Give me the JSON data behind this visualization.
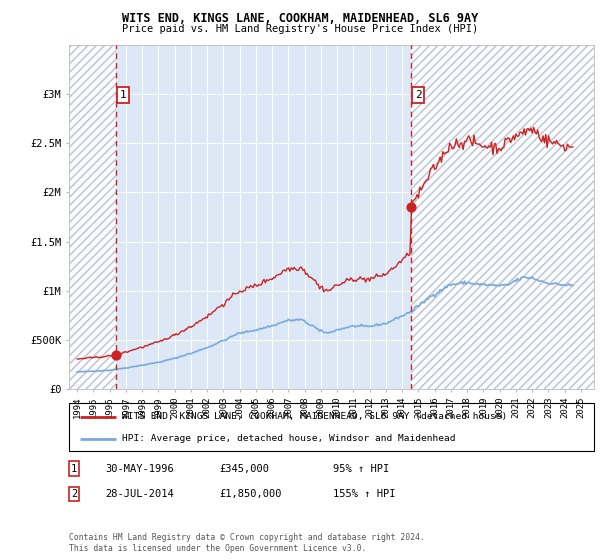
{
  "title": "WITS END, KINGS LANE, COOKHAM, MAIDENHEAD, SL6 9AY",
  "subtitle": "Price paid vs. HM Land Registry's House Price Index (HPI)",
  "ylim": [
    0,
    3500000
  ],
  "yticks": [
    0,
    500000,
    1000000,
    1500000,
    2000000,
    2500000,
    3000000
  ],
  "ytick_labels": [
    "£0",
    "£500K",
    "£1M",
    "£1.5M",
    "£2M",
    "£2.5M",
    "£3M"
  ],
  "sale_color": "#cc2222",
  "hpi_color": "#7aaadd",
  "sale_label": "WITS END, KINGS LANE, COOKHAM, MAIDENHEAD, SL6 9AY (detached house)",
  "hpi_label": "HPI: Average price, detached house, Windsor and Maidenhead",
  "annotation1_date": "30-MAY-1996",
  "annotation1_price": "£345,000",
  "annotation1_hpi": "95% ↑ HPI",
  "annotation2_date": "28-JUL-2014",
  "annotation2_price": "£1,850,000",
  "annotation2_hpi": "155% ↑ HPI",
  "copyright": "Contains HM Land Registry data © Crown copyright and database right 2024.\nThis data is licensed under the Open Government Licence v3.0.",
  "sale1_date": 1996.41,
  "sale1_price": 345000,
  "sale2_date": 2014.57,
  "sale2_price": 1850000,
  "vline1_x": 1996.41,
  "vline2_x": 2014.57,
  "xlim_start": 1993.5,
  "xlim_end": 2025.8,
  "bg_color": "#dce8f5",
  "hatch_color": "#b0b8c8"
}
